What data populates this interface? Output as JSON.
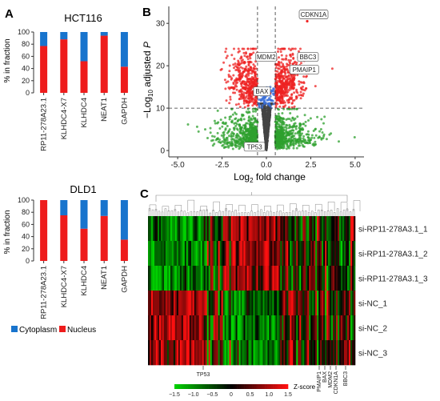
{
  "panel_labels": {
    "a": "A",
    "b": "B",
    "c": "C"
  },
  "colors": {
    "cytoplasm": "#1874cd",
    "nucleus": "#ee1c1c",
    "volcano_up": "#ee2222",
    "volcano_ns": "#2ea02e",
    "volcano_low": "#444444",
    "volcano_blue": "#3a6fd8",
    "heat_low": "#00d000",
    "heat_mid": "#000000",
    "heat_high": "#ff1010"
  },
  "chart_data": [
    {
      "id": "bar-hct116",
      "type": "bar",
      "stacked": true,
      "title": "HCT116",
      "ylabel": "% in fraction",
      "ylim": [
        0,
        100
      ],
      "yticks": [
        "0",
        "20",
        "40",
        "60",
        "80",
        "100"
      ],
      "categories": [
        "RP11-278A23.1",
        "KLHDC4-X7",
        "KLHDC4",
        "NEAT1",
        "GAPDH"
      ],
      "series": [
        {
          "name": "Nucleus",
          "values": [
            77,
            88,
            52,
            94,
            43
          ]
        },
        {
          "name": "Cytoplasm",
          "values": [
            23,
            12,
            48,
            6,
            57
          ]
        }
      ]
    },
    {
      "id": "bar-dld1",
      "type": "bar",
      "stacked": true,
      "title": "DLD1",
      "ylabel": "% in fraction",
      "ylim": [
        0,
        100
      ],
      "yticks": [
        "0",
        "20",
        "40",
        "60",
        "80",
        "100"
      ],
      "categories": [
        "RP11-278A23.1",
        "KLHDC4-X7",
        "KLHDC4",
        "NEAT1",
        "GAPDH"
      ],
      "series": [
        {
          "name": "Nucleus",
          "values": [
            100,
            75,
            53,
            74,
            35
          ]
        },
        {
          "name": "Cytoplasm",
          "values": [
            0,
            25,
            47,
            26,
            65
          ]
        }
      ],
      "legend": {
        "placement": "bottom",
        "items": [
          "Cytoplasm",
          "Nucleus"
        ]
      }
    },
    {
      "id": "volcano",
      "type": "scatter",
      "xlabel_main": "Log",
      "xlabel_sub": "2",
      "xlabel_rest": " fold change",
      "ylabel_prefix": "−Log",
      "ylabel_sub": "10",
      "ylabel_rest": " adjusted ",
      "ylabel_italic": "P",
      "xlim": [
        -5.5,
        5.5
      ],
      "ylim": [
        -1.5,
        34
      ],
      "xticks": [
        "-5.0",
        "-2.5",
        "0.0",
        "2.5",
        "5.0"
      ],
      "yticks": [
        "0",
        "10",
        "20",
        "30"
      ],
      "threshold_y": 10,
      "threshold_x": [
        -0.5,
        0.5
      ],
      "labels": [
        {
          "text": "CDKN1A",
          "x": 2.3,
          "y": 30.5
        },
        {
          "text": "BBC3",
          "x": 1.8,
          "y": 22.0
        },
        {
          "text": "MDM2",
          "x": 0.35,
          "y": 22.0
        },
        {
          "text": "PMAIP1",
          "x": 1.5,
          "y": 19.0
        },
        {
          "text": "BAX",
          "x": 0.2,
          "y": 13.5
        },
        {
          "text": "TP53",
          "x": -0.4,
          "y": 0.8
        }
      ]
    },
    {
      "id": "heatmap",
      "type": "heatmap",
      "rows": [
        "si-RP11-278A3.1_1",
        "si-RP11-278A3.1_2",
        "si-RP11-278A3.1_3",
        "si-NC_1",
        "si-NC_2",
        "si-NC_3"
      ],
      "colorbar_ticks": [
        "−1.5",
        "−1.0",
        "−0.5",
        "0",
        "0.5",
        "1.0",
        "1.5"
      ],
      "colorbar_label": "Z-score",
      "gene_labels": [
        "TP53",
        "PMAIP1",
        "BAX",
        "MDM2",
        "CDKN1A",
        "BBC3"
      ]
    }
  ]
}
